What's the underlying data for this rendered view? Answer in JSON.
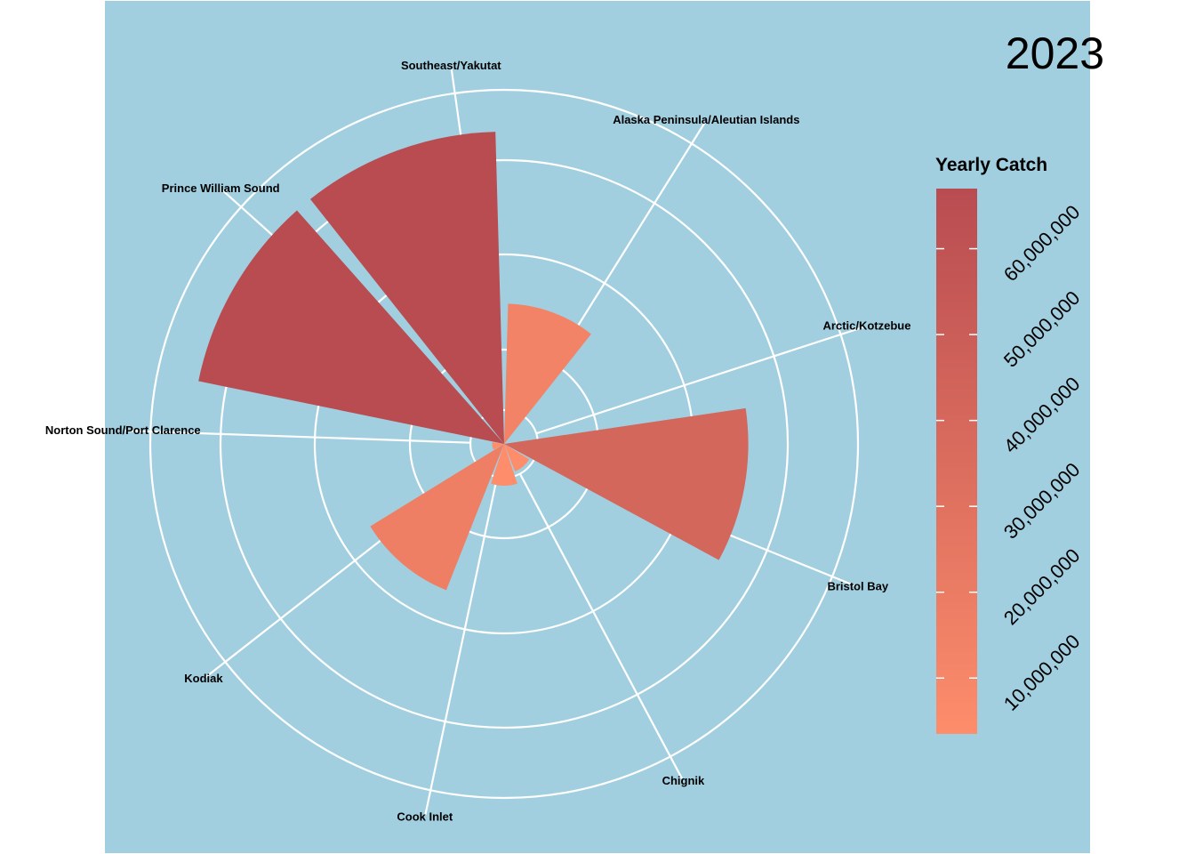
{
  "year_label": "2023",
  "legend": {
    "title": "Yearly Catch",
    "color_low": "#fd8d6b",
    "color_high": "#b84c51",
    "ticks": [
      "10,000,000",
      "20,000,000",
      "30,000,000",
      "40,000,000",
      "50,000,000",
      "60,000,000"
    ],
    "tick_values": [
      10000000,
      20000000,
      30000000,
      40000000,
      50000000,
      60000000
    ],
    "range": [
      3500000,
      67000000
    ]
  },
  "colors": {
    "background": "#a1cfe0",
    "grid": "#ffffff"
  },
  "chart_data": {
    "type": "bar",
    "coord": "polar",
    "title": "2023",
    "legend_title": "Yearly Catch",
    "categories": [
      "Alaska Peninsula/Aleutian Islands",
      "Arctic/Kotzebue",
      "Bristol Bay",
      "Chignik",
      "Cook Inlet",
      "Kodiak",
      "Norton Sound/Port Clarence",
      "Prince William Sound",
      "Southeast/Yakutat"
    ],
    "values": [
      13500000,
      1000,
      41000000,
      600000,
      1200000,
      17000000,
      100000,
      67000000,
      67000000
    ],
    "value_max": 67000000,
    "grid": true
  }
}
